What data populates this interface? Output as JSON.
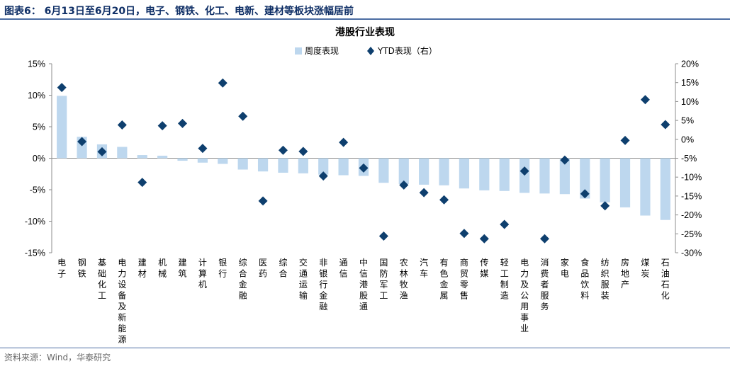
{
  "header": {
    "title": "图表6： 6月13日至6月20日，电子、钢铁、化工、电新、建材等板块涨幅居前"
  },
  "source": {
    "text": "资料来源：Wind，华泰研究"
  },
  "colors": {
    "bar": "#bdd7ee",
    "marker": "#0e3f6e",
    "axis": "#8c8c8c",
    "header_rule": "#4c6da3",
    "header_text": "#0f2f66"
  },
  "chart_data": {
    "type": "bar",
    "title": "港股行业表现",
    "categories": [
      "电子",
      "钢铁",
      "基础化工",
      "电力设备及新能源",
      "建材",
      "机械",
      "建筑",
      "计算机",
      "银行",
      "综合金融",
      "医药",
      "综合",
      "交通运输",
      "非银行金融",
      "通信",
      "中信港股通",
      "国防军工",
      "农林牧渔",
      "汽车",
      "有色金属",
      "商贸零售",
      "传媒",
      "轻工制造",
      "电力及公用事业",
      "消费者服务",
      "家电",
      "食品饮料",
      "纺织服装",
      "房地产",
      "煤炭",
      "石油石化"
    ],
    "series": [
      {
        "name": "周度表现",
        "type": "bar",
        "axis": "left",
        "values": [
          9.9,
          3.4,
          2.2,
          1.8,
          0.5,
          0.4,
          -0.4,
          -0.7,
          -0.9,
          -1.8,
          -2.1,
          -2.3,
          -2.4,
          -2.6,
          -2.7,
          -2.8,
          -3.9,
          -4.1,
          -4.2,
          -4.3,
          -4.8,
          -5.1,
          -5.2,
          -5.5,
          -5.6,
          -5.7,
          -6.4,
          -7.0,
          -7.8,
          -9.1,
          -9.8
        ]
      },
      {
        "name": "YTD表现（右）",
        "type": "scatter",
        "axis": "right",
        "values": [
          13.7,
          -0.6,
          -3.3,
          3.8,
          -11.4,
          3.6,
          4.2,
          -2.4,
          14.9,
          6.1,
          -16.3,
          -2.9,
          -3.2,
          -9.7,
          -0.8,
          -7.6,
          -25.6,
          -12.1,
          -14.1,
          -16.0,
          -24.9,
          -26.3,
          -22.5,
          -8.4,
          -26.3,
          -5.5,
          -14.4,
          -17.6,
          -0.3,
          10.5,
          3.9
        ]
      }
    ],
    "y_left": {
      "min": -15,
      "max": 15,
      "ticks": [
        "-15%",
        "-10%",
        "-5%",
        "0%",
        "5%",
        "10%",
        "15%"
      ]
    },
    "y_right": {
      "min": -30,
      "max": 20,
      "ticks": [
        "-30%",
        "-25%",
        "-20%",
        "-15%",
        "-10%",
        "-5%",
        "0%",
        "5%",
        "10%",
        "15%",
        "20%"
      ]
    },
    "legend_position": "top-center",
    "grid": false
  }
}
